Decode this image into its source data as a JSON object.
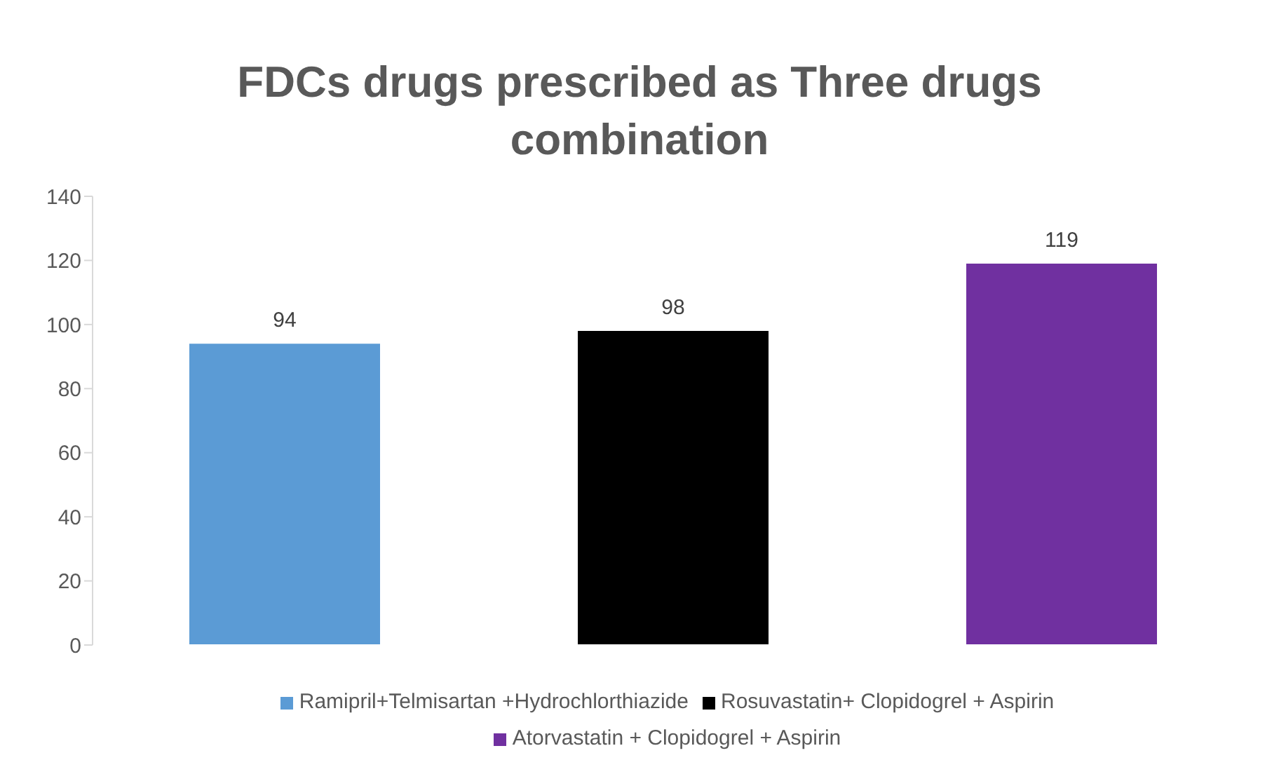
{
  "chart_data": {
    "type": "bar",
    "title": "FDCs drugs prescribed as Three drugs combination",
    "categories": [
      null
    ],
    "series": [
      {
        "name": "Ramipril+Telmisartan +Hydrochlorthiazide",
        "color": "#5b9bd5",
        "values": [
          94
        ]
      },
      {
        "name": "Rosuvastatin+ Clopidogrel + Aspirin",
        "color": "#000000",
        "values": [
          98
        ]
      },
      {
        "name": "Atorvastatin + Clopidogrel + Aspirin",
        "color": "#7030a0",
        "values": [
          119
        ]
      }
    ],
    "ylim": [
      0,
      140
    ],
    "yticks": [
      0,
      20,
      40,
      60,
      80,
      100,
      120,
      140
    ],
    "grid": false,
    "legend": "bottom",
    "data_labels": true
  }
}
